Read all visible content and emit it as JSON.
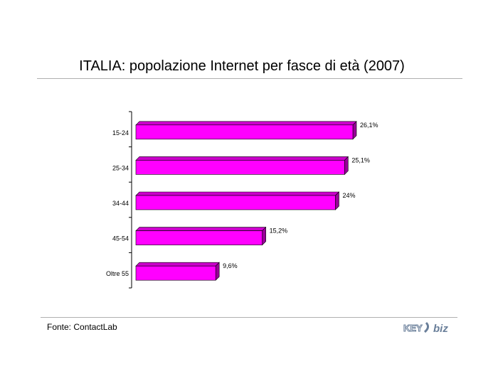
{
  "header": {
    "title": "ITALIA: popolazione Internet per fasce di età (2007)"
  },
  "footer": {
    "source": "Fonte: ContactLab",
    "logo_text": "KEY4biz"
  },
  "colors": {
    "bar_front": "#ff00ff",
    "bar_top": "#cc00cc",
    "bar_side": "#990099",
    "axis": "#000000"
  },
  "chart_data": {
    "type": "bar",
    "orientation": "horizontal",
    "categories": [
      "15-24",
      "25-34",
      "34-44",
      "45-54",
      "Oltre 55"
    ],
    "values": [
      26.1,
      25.1,
      24,
      15.2,
      9.6
    ],
    "data_labels": [
      "26,1%",
      "25,1%",
      "24%",
      "15,2%",
      "9,6%"
    ],
    "unit": "%",
    "title": "ITALIA: popolazione Internet per fasce di età (2007)",
    "xlabel": "",
    "ylabel": "",
    "xlim": [
      0,
      26.1
    ],
    "grid": false,
    "legend": "none"
  }
}
